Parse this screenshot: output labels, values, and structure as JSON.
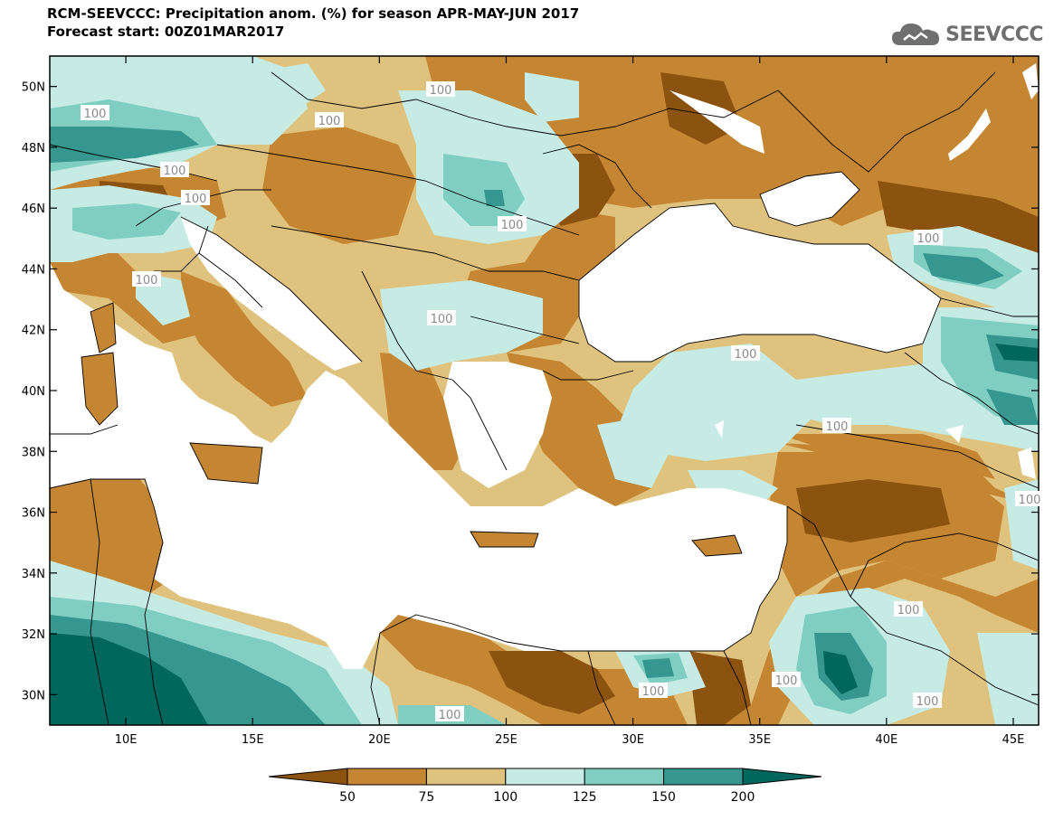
{
  "title_line1": "RCM-SEEVCCC: Precipitation anom. (%) for season APR-MAY-JUN 2017",
  "title_line2": "Forecast start: 00Z01MAR2017",
  "logo_text": "SEEVCCC",
  "logo_icon": "cloud-icon",
  "map": {
    "lon_range": [
      7,
      46
    ],
    "lat_range": [
      29,
      51
    ],
    "lat_ticks": [
      "50N",
      "48N",
      "46N",
      "44N",
      "42N",
      "40N",
      "38N",
      "36N",
      "34N",
      "32N",
      "30N"
    ],
    "lat_values": [
      50,
      48,
      46,
      44,
      42,
      40,
      38,
      36,
      34,
      32,
      30
    ],
    "lon_ticks": [
      "10E",
      "15E",
      "20E",
      "25E",
      "30E",
      "35E",
      "40E",
      "45E"
    ],
    "lon_values": [
      10,
      15,
      20,
      25,
      30,
      35,
      40,
      45
    ],
    "contour_label": "100"
  },
  "colorbar": {
    "labels": [
      "50",
      "75",
      "100",
      "125",
      "150",
      "200"
    ],
    "colors": [
      "#8c5210",
      "#c48632",
      "#dfc27d",
      "#c6ebe5",
      "#80cdc1",
      "#35978f",
      "#01665e"
    ]
  }
}
